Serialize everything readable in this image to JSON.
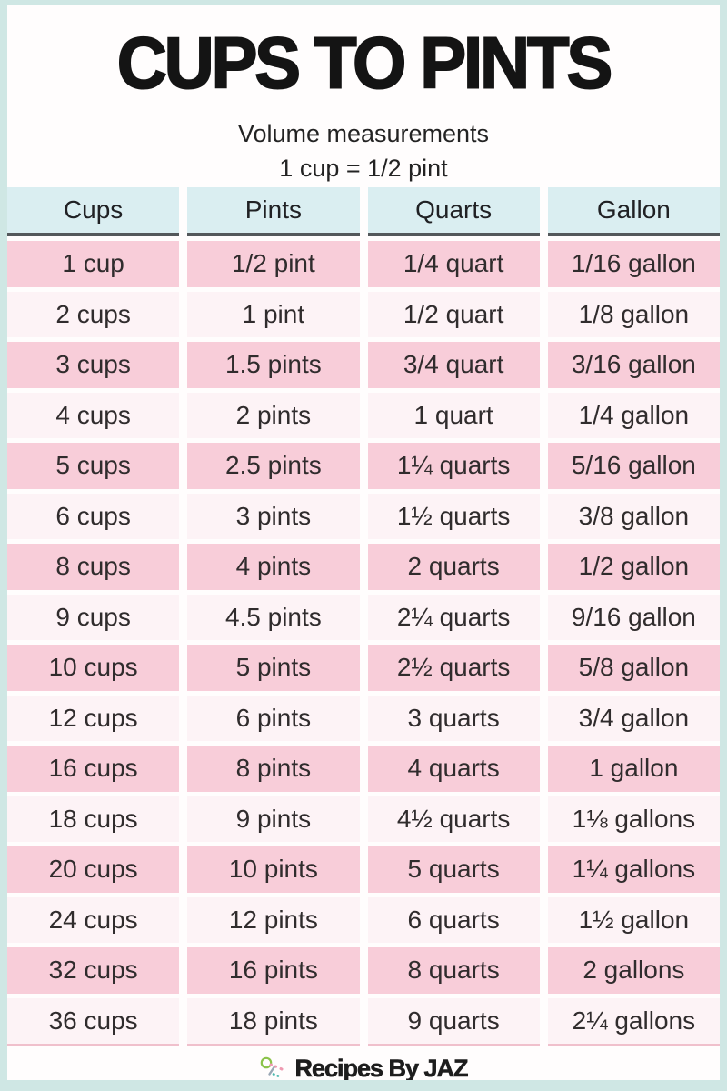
{
  "page": {
    "title": "CUPS TO PINTS",
    "subtitle": "Volume measurements",
    "formula": "1 cup = 1/2 pint",
    "footer": {
      "brand": "Recipes By JAZ"
    }
  },
  "chart_data": {
    "type": "table",
    "title": "Cups to Pints volume conversion table",
    "columns": [
      "Cups",
      "Pints",
      "Quarts",
      "Gallon"
    ],
    "rows": [
      [
        "1 cup",
        "1/2 pint",
        "1/4 quart",
        "1/16 gallon"
      ],
      [
        "2 cups",
        "1 pint",
        "1/2 quart",
        "1/8 gallon"
      ],
      [
        "3 cups",
        "1.5 pints",
        "3/4 quart",
        "3/16 gallon"
      ],
      [
        "4 cups",
        "2 pints",
        "1 quart",
        "1/4 gallon"
      ],
      [
        "5 cups",
        "2.5 pints",
        "1¼ quarts",
        "5/16 gallon"
      ],
      [
        "6 cups",
        "3 pints",
        "1½ quarts",
        "3/8 gallon"
      ],
      [
        "8 cups",
        "4 pints",
        "2 quarts",
        "1/2 gallon"
      ],
      [
        "9 cups",
        "4.5 pints",
        "2¼ quarts",
        "9/16 gallon"
      ],
      [
        "10 cups",
        "5 pints",
        "2½ quarts",
        "5/8 gallon"
      ],
      [
        "12 cups",
        "6 pints",
        "3 quarts",
        "3/4 gallon"
      ],
      [
        "16 cups",
        "8 pints",
        "4 quarts",
        "1 gallon"
      ],
      [
        "18 cups",
        "9 pints",
        "4½ quarts",
        "1⅛ gallons"
      ],
      [
        "20 cups",
        "10 pints",
        "5 quarts",
        "1¼ gallons"
      ],
      [
        "24 cups",
        "12 pints",
        "6 quarts",
        "1½ gallon"
      ],
      [
        "32 cups",
        "16 pints",
        "8 quarts",
        "2 gallons"
      ],
      [
        "36 cups",
        "18 pints",
        "9 quarts",
        "2¼ gallons"
      ]
    ],
    "layout": {
      "header_position": "top",
      "row_striping": "pink/white alternating"
    }
  },
  "colors": {
    "border_teal": "#cfe7e4",
    "header_bg": "#daeef1",
    "header_underline": "#53585b",
    "row_pink": "#f8cdd9",
    "row_light": "#fdf3f6",
    "last_row_underline": "#f0c0cc",
    "text": "#302c2d",
    "title_text": "#141414",
    "icon_green": "#8bc34a",
    "icon_pink": "#ef9ab1",
    "icon_teal": "#4ab8ae",
    "icon_gray": "#9aa7b5"
  },
  "icons": {
    "footer_icon": "whisk-icon"
  }
}
